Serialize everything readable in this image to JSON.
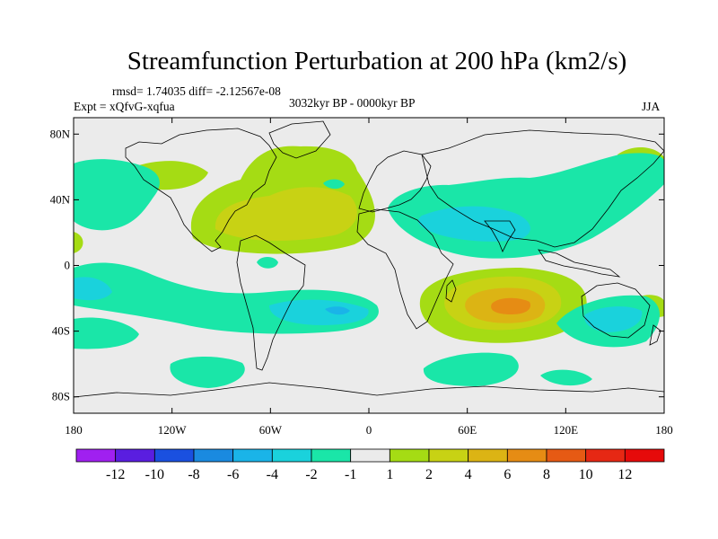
{
  "chart_data": {
    "type": "heatmap",
    "title": "Streamfunction Perturbation at 200 hPa (km2/s)",
    "stats_line": "rmsd= 1.74035 diff= -2.12567e-08",
    "subtitle": "3032kyr BP - 0000kyr BP",
    "experiment_label": "Expt = xQfvG-xqfua",
    "season_label": "JJA",
    "x_ticks": [
      "180",
      "120W",
      "60W",
      "0",
      "60E",
      "120E",
      "180"
    ],
    "x_tick_values": [
      -180,
      -120,
      -60,
      0,
      60,
      120,
      180
    ],
    "y_ticks": [
      "80N",
      "40N",
      "0",
      "40S",
      "80S"
    ],
    "y_tick_values": [
      80,
      40,
      0,
      -40,
      -80
    ],
    "xlim": [
      -180,
      180
    ],
    "ylim": [
      -90,
      90
    ],
    "colorbar_labels": [
      "-12",
      "-10",
      "-8",
      "-6",
      "-4",
      "-2",
      "-1",
      "1",
      "2",
      "4",
      "6",
      "8",
      "10",
      "12"
    ],
    "colorbar_colors": [
      "#a020f0",
      "#5a1ee0",
      "#1a50e0",
      "#1a8ae0",
      "#1ab4e8",
      "#1ad2dc",
      "#1ae6a8",
      "#ebebeb",
      "#a5dc14",
      "#c8d214",
      "#dcb414",
      "#e68c14",
      "#e65a14",
      "#e62814",
      "#e60a0a"
    ],
    "features": [
      {
        "name": "mid-Atlantic positive center",
        "lon": -45,
        "lat": 25,
        "value": 5
      },
      {
        "name": "south Indian Ocean positive center",
        "lon": 85,
        "lat": -25,
        "value": 9
      },
      {
        "name": "Eurasian negative band",
        "lon": 80,
        "lat": 35,
        "value": -3
      },
      {
        "name": "South Atlantic negative band",
        "lon": -30,
        "lat": -28,
        "value": -4
      },
      {
        "name": "North Pacific negative center",
        "lon": -155,
        "lat": 40,
        "value": -3
      }
    ]
  }
}
